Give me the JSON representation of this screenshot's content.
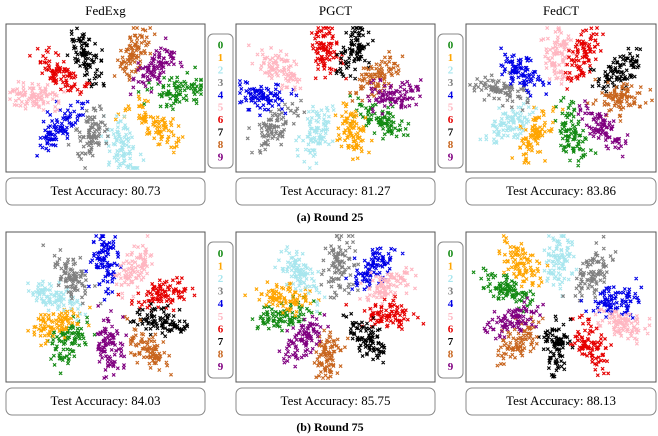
{
  "legend": {
    "labels": [
      "0",
      "1",
      "2",
      "3",
      "4",
      "5",
      "6",
      "7",
      "8",
      "9"
    ],
    "colors": [
      "#138a13",
      "#ffa500",
      "#a8e6ee",
      "#808080",
      "#0000e6",
      "#ffb6c1",
      "#e60000",
      "#000000",
      "#c8651e",
      "#800080"
    ]
  },
  "rows": [
    {
      "caption": "(a) Round 25",
      "panels": [
        {
          "title": "FedExg",
          "accuracy": "Test Accuracy: 80.73"
        },
        {
          "title": "PGCT",
          "accuracy": "Test Accuracy: 81.27"
        },
        {
          "title": "FedCT",
          "accuracy": "Test Accuracy: 83.86"
        }
      ]
    },
    {
      "caption": "(b) Round 75",
      "panels": [
        {
          "accuracy": "Test Accuracy: 84.03"
        },
        {
          "accuracy": "Test Accuracy: 85.75"
        },
        {
          "accuracy": "Test Accuracy: 88.13"
        }
      ]
    }
  ]
}
